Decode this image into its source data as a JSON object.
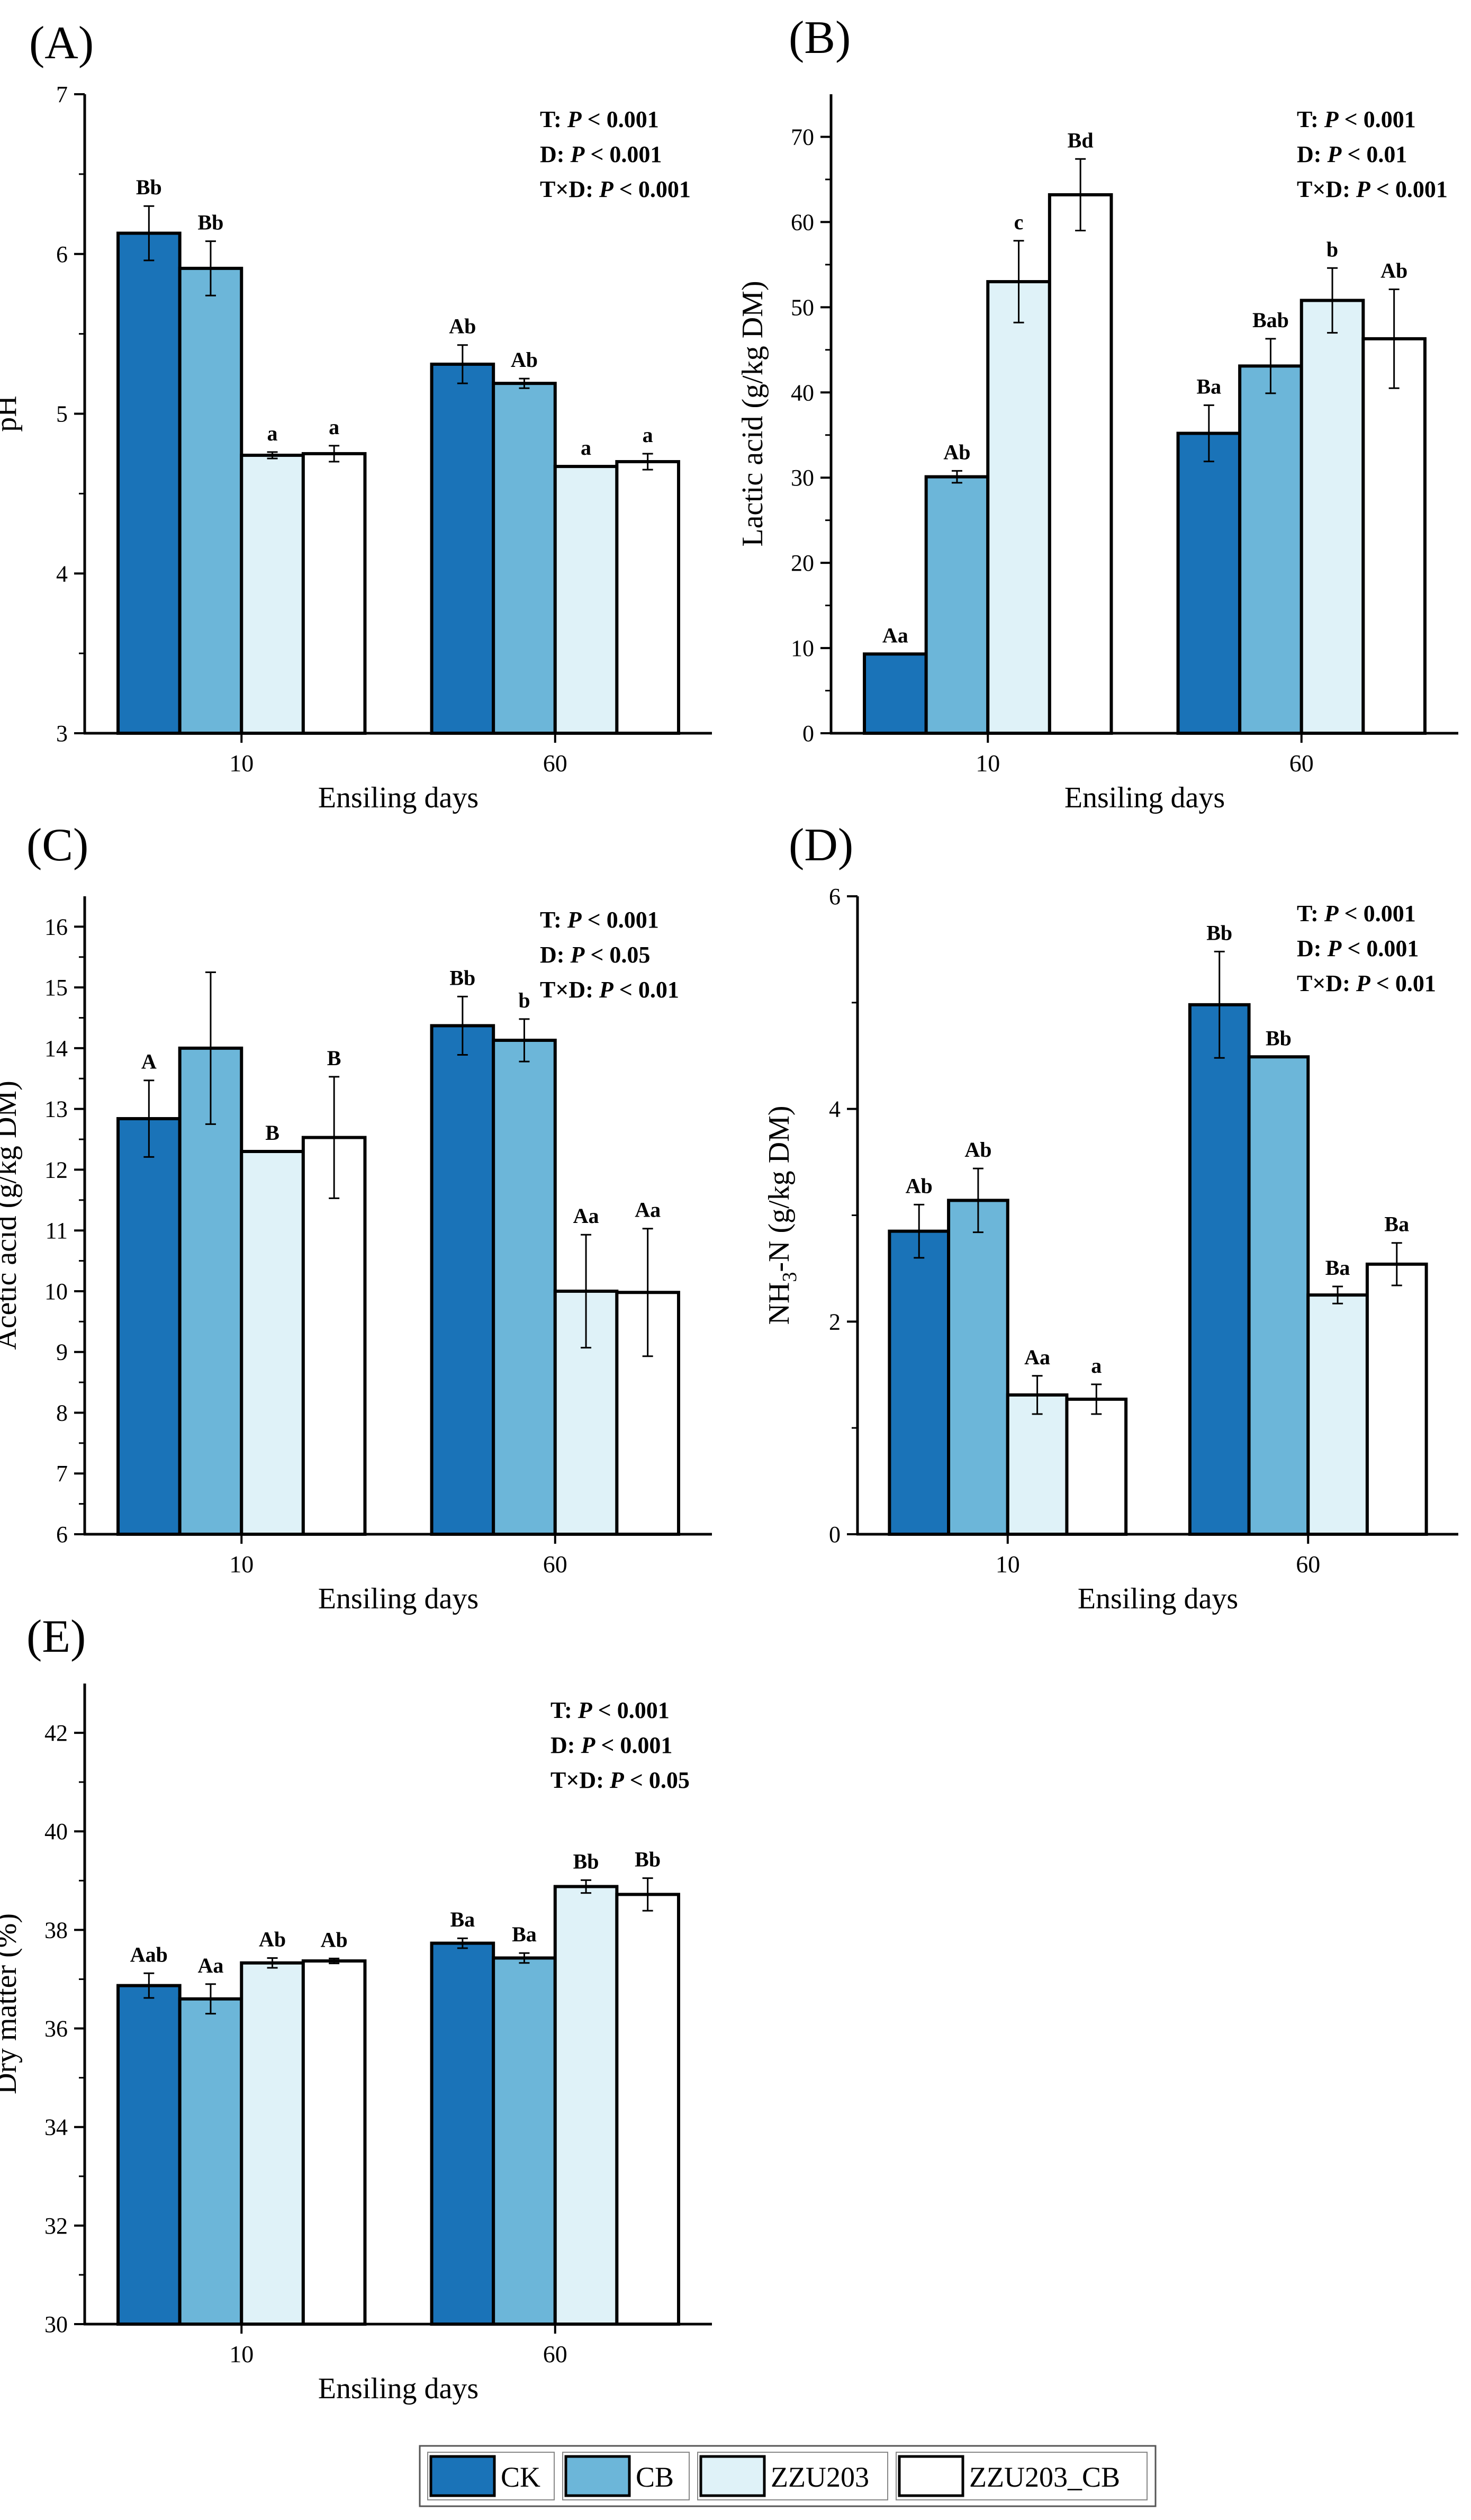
{
  "legend": {
    "items": [
      {
        "name": "CK",
        "color": "#1a73b8"
      },
      {
        "name": "CB",
        "color": "#6cb6d9"
      },
      {
        "name": "ZZU203",
        "color": "#dff2f8"
      },
      {
        "name": "ZZU203_CB",
        "color": "#ffffff"
      }
    ]
  },
  "chart_data": [
    {
      "id": "A",
      "panel_label": "(A)",
      "type": "bar",
      "title": "",
      "xlabel": "Ensiling days",
      "ylabel": "pH",
      "categories": [
        "10",
        "60"
      ],
      "ylim": [
        3,
        7
      ],
      "yticks": [
        "3",
        "4",
        "5",
        "6",
        "7"
      ],
      "series": [
        {
          "name": "CK",
          "values": [
            6.13,
            5.31
          ],
          "errors": [
            0.17,
            0.12
          ],
          "labels": [
            "Bb",
            "Ab"
          ]
        },
        {
          "name": "CB",
          "values": [
            5.91,
            5.19
          ],
          "errors": [
            0.17,
            0.03
          ],
          "labels": [
            "Bb",
            "Ab"
          ]
        },
        {
          "name": "ZZU203",
          "values": [
            4.74,
            4.67
          ],
          "errors": [
            0.02,
            0.0
          ],
          "labels": [
            "a",
            "a"
          ]
        },
        {
          "name": "ZZU203_CB",
          "values": [
            4.75,
            4.7
          ],
          "errors": [
            0.05,
            0.05
          ],
          "labels": [
            "a",
            "a"
          ]
        }
      ],
      "stats": [
        {
          "prefix": "T: ",
          "p": "P",
          "rest": " < 0.001"
        },
        {
          "prefix": "D: ",
          "p": "P",
          "rest": " < 0.001"
        },
        {
          "prefix": "T×D: ",
          "p": "P",
          "rest": " < 0.001"
        }
      ]
    },
    {
      "id": "B",
      "panel_label": "(B)",
      "type": "bar",
      "title": "",
      "xlabel": "Ensiling days",
      "ylabel": "Lactic acid (g/kg DM)",
      "categories": [
        "10",
        "60"
      ],
      "ylim": [
        0,
        75
      ],
      "yticks": [
        "0",
        "10",
        "20",
        "30",
        "40",
        "50",
        "60",
        "70"
      ],
      "series": [
        {
          "name": "CK",
          "values": [
            9.3,
            35.2
          ],
          "errors": [
            0.0,
            3.3
          ],
          "labels": [
            "Aa",
            "Ba"
          ]
        },
        {
          "name": "CB",
          "values": [
            30.1,
            43.1
          ],
          "errors": [
            0.7,
            3.2
          ],
          "labels": [
            "Ab",
            "Bab"
          ]
        },
        {
          "name": "ZZU203",
          "values": [
            53.0,
            50.8
          ],
          "errors": [
            4.8,
            3.8
          ],
          "labels": [
            "c",
            "b"
          ]
        },
        {
          "name": "ZZU203_CB",
          "values": [
            63.2,
            46.3
          ],
          "errors": [
            4.2,
            5.8
          ],
          "labels": [
            "Bd",
            "Ab"
          ]
        }
      ],
      "stats": [
        {
          "prefix": "T: ",
          "p": "P",
          "rest": " < 0.001"
        },
        {
          "prefix": "D: ",
          "p": "P",
          "rest": " < 0.01"
        },
        {
          "prefix": "T×D: ",
          "p": "P",
          "rest": " < 0.001"
        }
      ]
    },
    {
      "id": "C",
      "panel_label": "(C)",
      "type": "bar",
      "title": "",
      "xlabel": "Ensiling days",
      "ylabel": "Acetic acid (g/kg DM)",
      "categories": [
        "10",
        "60"
      ],
      "ylim": [
        6,
        16.5
      ],
      "yticks": [
        "6",
        "7",
        "8",
        "9",
        "10",
        "11",
        "12",
        "13",
        "14",
        "15",
        "16"
      ],
      "series": [
        {
          "name": "CK",
          "values": [
            12.84,
            14.37
          ],
          "errors": [
            0.63,
            0.48
          ],
          "labels": [
            "A",
            "Bb"
          ]
        },
        {
          "name": "CB",
          "values": [
            14.0,
            14.13
          ],
          "errors": [
            1.25,
            0.35
          ],
          "labels": [
            "",
            "b"
          ]
        },
        {
          "name": "ZZU203",
          "values": [
            12.3,
            10.0
          ],
          "errors": [
            0.0,
            0.93
          ],
          "labels": [
            "B",
            "Aa"
          ]
        },
        {
          "name": "ZZU203_CB",
          "values": [
            12.53,
            9.98
          ],
          "errors": [
            1.0,
            1.05
          ],
          "labels": [
            "B",
            "Aa"
          ]
        }
      ],
      "stats": [
        {
          "prefix": "T: ",
          "p": "P",
          "rest": " < 0.001"
        },
        {
          "prefix": "D: ",
          "p": "P",
          "rest": " < 0.05"
        },
        {
          "prefix": "T×D: ",
          "p": "P",
          "rest": " < 0.01"
        }
      ]
    },
    {
      "id": "D",
      "panel_label": "(D)",
      "type": "bar",
      "title": "",
      "xlabel": "Ensiling days",
      "ylabel": "NH3-N (g/kg DM)",
      "ylabel_parts": {
        "pre": "NH",
        "sub": "3",
        "post": "-N (g/kg DM)"
      },
      "categories": [
        "10",
        "60"
      ],
      "ylim": [
        0,
        6
      ],
      "yticks": [
        "0",
        "2",
        "4",
        "6"
      ],
      "series": [
        {
          "name": "CK",
          "values": [
            2.85,
            4.98
          ],
          "errors": [
            0.25,
            0.5
          ],
          "labels": [
            "Ab",
            "Bb"
          ]
        },
        {
          "name": "CB",
          "values": [
            3.14,
            4.49
          ],
          "errors": [
            0.3,
            0.0
          ],
          "labels": [
            "Ab",
            "Bb"
          ]
        },
        {
          "name": "ZZU203",
          "values": [
            1.31,
            2.25
          ],
          "errors": [
            0.18,
            0.08
          ],
          "labels": [
            "Aa",
            "Ba"
          ]
        },
        {
          "name": "ZZU203_CB",
          "values": [
            1.27,
            2.54
          ],
          "errors": [
            0.14,
            0.2
          ],
          "labels": [
            "a",
            "Ba"
          ]
        }
      ],
      "stats": [
        {
          "prefix": "T: ",
          "p": "P",
          "rest": " < 0.001"
        },
        {
          "prefix": "D: ",
          "p": "P",
          "rest": " < 0.001"
        },
        {
          "prefix": "T×D: ",
          "p": "P",
          "rest": " < 0.01"
        }
      ]
    },
    {
      "id": "E",
      "panel_label": "(E)",
      "type": "bar",
      "title": "",
      "xlabel": "Ensiling days",
      "ylabel": "Dry matter (%)",
      "categories": [
        "10",
        "60"
      ],
      "ylim": [
        30,
        43
      ],
      "yticks": [
        "30",
        "32",
        "34",
        "36",
        "38",
        "40",
        "42"
      ],
      "series": [
        {
          "name": "CK",
          "values": [
            36.87,
            37.73
          ],
          "errors": [
            0.25,
            0.1
          ],
          "labels": [
            "Aab",
            "Ba"
          ]
        },
        {
          "name": "CB",
          "values": [
            36.6,
            37.43
          ],
          "errors": [
            0.3,
            0.1
          ],
          "labels": [
            "Aa",
            "Ba"
          ]
        },
        {
          "name": "ZZU203",
          "values": [
            37.33,
            38.88
          ],
          "errors": [
            0.1,
            0.13
          ],
          "labels": [
            "Ab",
            "Bb"
          ]
        },
        {
          "name": "ZZU203_CB",
          "values": [
            37.37,
            38.72
          ],
          "errors": [
            0.05,
            0.33
          ],
          "labels": [
            "Ab",
            "Bb"
          ]
        }
      ],
      "stats": [
        {
          "prefix": "T: ",
          "p": "P",
          "rest": " < 0.001"
        },
        {
          "prefix": "D: ",
          "p": "P",
          "rest": " < 0.001"
        },
        {
          "prefix": "T×D: ",
          "p": "P",
          "rest": " < 0.05"
        }
      ]
    }
  ]
}
